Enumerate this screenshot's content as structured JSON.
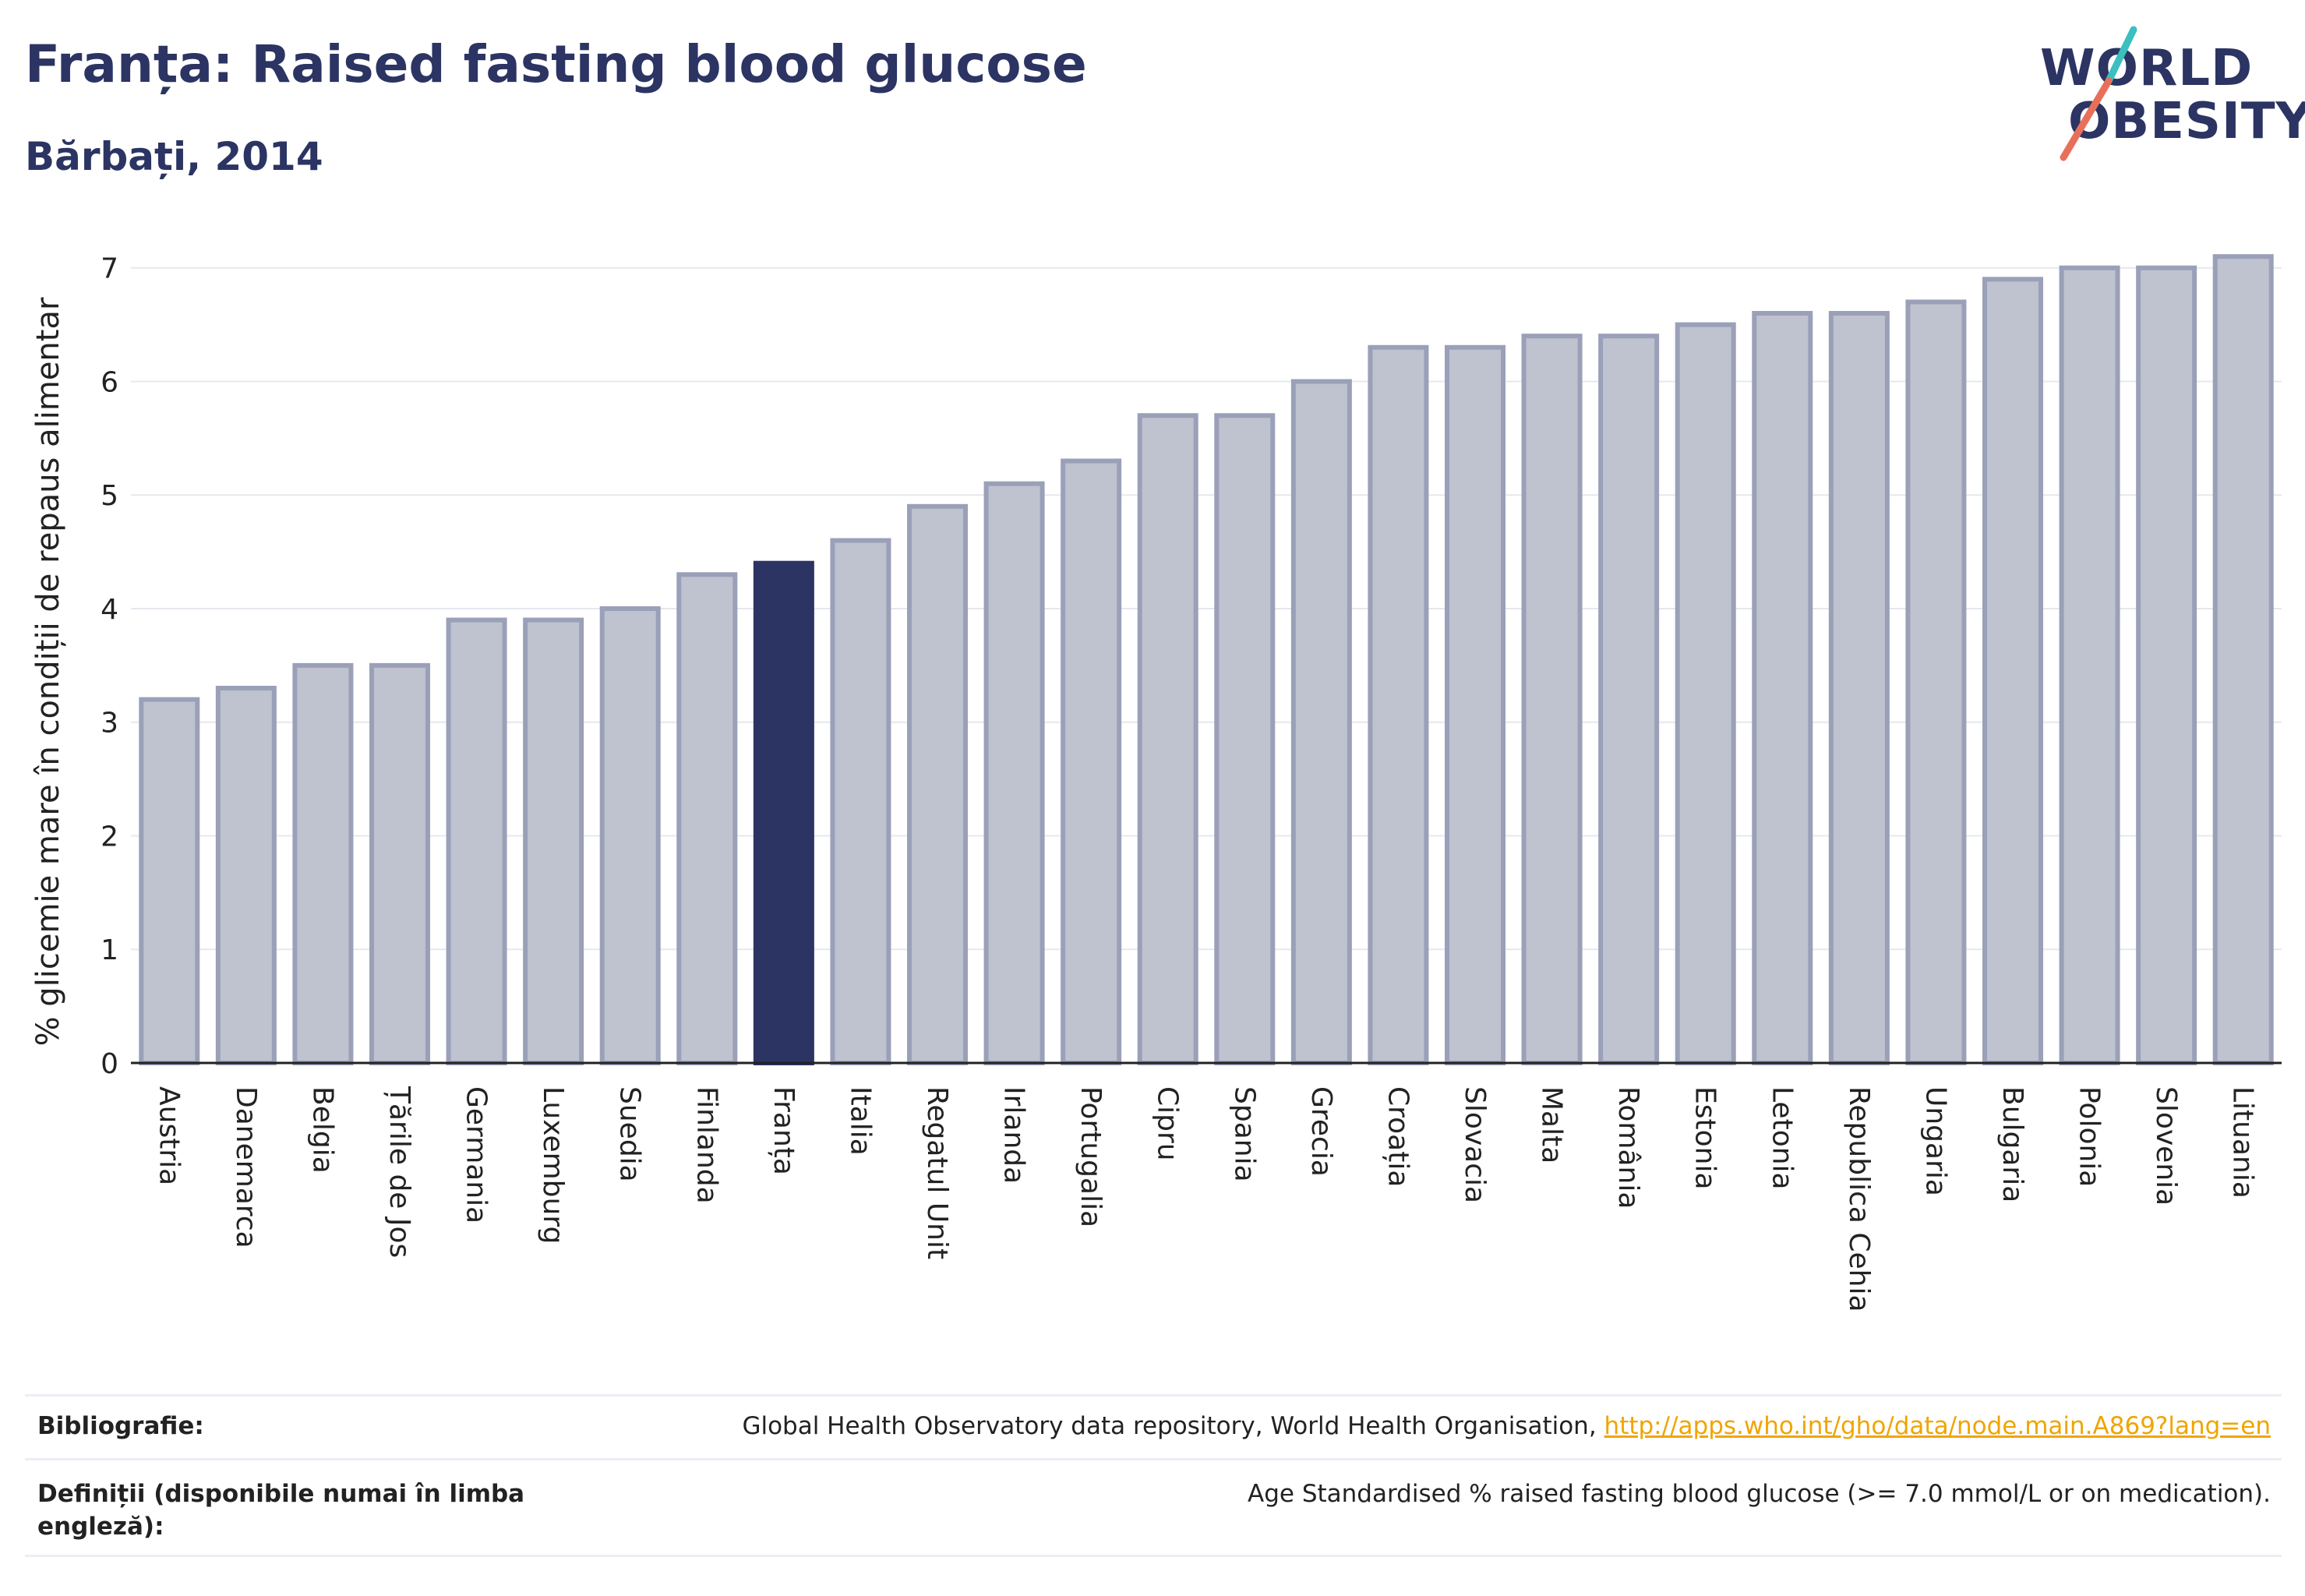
{
  "header": {
    "title": "Franța: Raised fasting blood glucose",
    "subtitle": "Bărbați, 2014"
  },
  "logo": {
    "line1": "WORLD",
    "line2": "OBESITY"
  },
  "chart_data": {
    "type": "bar",
    "ylabel": "% glicemie mare în condiții de repaus alimentar",
    "ylim": [
      0,
      7.3
    ],
    "yticks": [
      0,
      1,
      2,
      3,
      4,
      5,
      6,
      7
    ],
    "grid": true,
    "highlight": "Franța",
    "colors": {
      "bar": "#bfc2cf",
      "bar_border": "#9aa0b8",
      "highlight": "#2b3462"
    },
    "categories": [
      "Austria",
      "Danemarca",
      "Belgia",
      "Țările de Jos",
      "Germania",
      "Luxemburg",
      "Suedia",
      "Finlanda",
      "Franța",
      "Italia",
      "Regatul Unit",
      "Irlanda",
      "Portugalia",
      "Cipru",
      "Spania",
      "Grecia",
      "Croația",
      "Slovacia",
      "Malta",
      "România",
      "Estonia",
      "Letonia",
      "Republica Cehia",
      "Ungaria",
      "Bulgaria",
      "Polonia",
      "Slovenia",
      "Lituania"
    ],
    "values": [
      3.2,
      3.3,
      3.5,
      3.5,
      3.9,
      3.9,
      4.0,
      4.3,
      4.4,
      4.6,
      4.9,
      5.1,
      5.3,
      5.7,
      5.7,
      6.0,
      6.3,
      6.3,
      6.4,
      6.4,
      6.5,
      6.6,
      6.6,
      6.7,
      6.9,
      7.0,
      7.0,
      7.1
    ]
  },
  "footer": {
    "bibliography_label": "Bibliografie:",
    "bibliography_text": "Global Health Observatory data repository, World Health Organisation, ",
    "bibliography_link": "http://apps.who.int/gho/data/node.main.A869?lang=en",
    "definitions_label_1": "Definiții (disponibile numai în limba",
    "definitions_label_2": "engleză):",
    "definitions_text": "Age Standardised % raised fasting blood glucose (>= 7.0 mmol/L or on medication)."
  }
}
